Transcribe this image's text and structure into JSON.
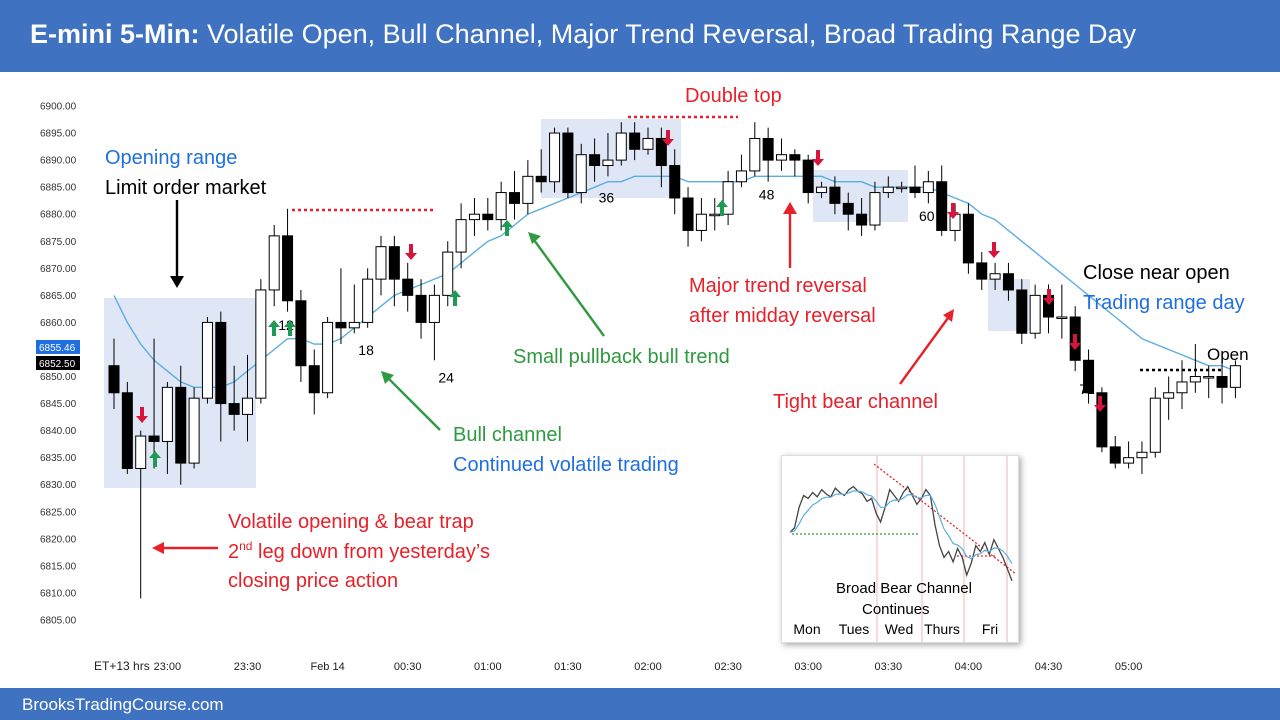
{
  "header": {
    "title_bold": "E-mini 5-Min:",
    "title_rest": " Volatile Open, Bull Channel, Major Trend Reversal, Broad Trading Range Day"
  },
  "footer": {
    "site": "BrooksTradingCourse.com"
  },
  "colors": {
    "bull_body": "#ffffff",
    "bear_body": "#000000",
    "ema": "#5aaee0",
    "shade": "#dfe6f6",
    "red": "#e8202a",
    "green": "#2f9a3f",
    "blue": "#1f6fe0",
    "up_arrow": "#1e9a55",
    "down_arrow": "#d8143a"
  },
  "chart_data": {
    "type": "candlestick",
    "timeframe": "5-Min",
    "x_label": "ET+13 hrs",
    "ylim": [
      6805,
      6900
    ],
    "y_ticks": [
      "6900.00",
      "6895.00",
      "6890.00",
      "6885.00",
      "6880.00",
      "6875.00",
      "6870.00",
      "6865.00",
      "6860.00",
      "6855.00",
      "6850.00",
      "6845.00",
      "6840.00",
      "6835.00",
      "6830.00",
      "6825.00",
      "6820.00",
      "6815.00",
      "6810.00",
      "6805.00"
    ],
    "x_ticks": [
      {
        "bar": 4,
        "label": "23:00"
      },
      {
        "bar": 10,
        "label": "23:30"
      },
      {
        "bar": 16,
        "label": "Feb 14"
      },
      {
        "bar": 22,
        "label": "00:30"
      },
      {
        "bar": 28,
        "label": "01:00"
      },
      {
        "bar": 34,
        "label": "01:30"
      },
      {
        "bar": 40,
        "label": "02:00"
      },
      {
        "bar": 46,
        "label": "02:30"
      },
      {
        "bar": 52,
        "label": "03:00"
      },
      {
        "bar": 58,
        "label": "03:30"
      },
      {
        "bar": 64,
        "label": "04:00"
      },
      {
        "bar": 70,
        "label": "04:30"
      },
      {
        "bar": 76,
        "label": "05:00"
      }
    ],
    "price_tags": [
      {
        "value": 6855.46,
        "label": "6855.46",
        "color": "#1f6fe0"
      },
      {
        "value": 6852.5,
        "label": "6852.50",
        "color": "#000000"
      }
    ],
    "candles": [
      [
        6852,
        6847,
        6857,
        6844
      ],
      [
        6847,
        6833,
        6849,
        6832
      ],
      [
        6833,
        6839,
        6840,
        6809
      ],
      [
        6839,
        6838,
        6857,
        6833
      ],
      [
        6838,
        6848,
        6849,
        6832
      ],
      [
        6848,
        6834,
        6852,
        6830
      ],
      [
        6834,
        6846,
        6848,
        6833
      ],
      [
        6846,
        6860,
        6861,
        6845
      ],
      [
        6860,
        6845,
        6862,
        6838
      ],
      [
        6845,
        6843,
        6852,
        6840
      ],
      [
        6843,
        6846,
        6854,
        6838
      ],
      [
        6846,
        6866,
        6868,
        6845
      ],
      [
        6866,
        6876,
        6878,
        6863
      ],
      [
        6876,
        6864,
        6881,
        6862
      ],
      [
        6864,
        6852,
        6866,
        6849
      ],
      [
        6852,
        6847,
        6855,
        6843
      ],
      [
        6847,
        6860,
        6861,
        6846
      ],
      [
        6860,
        6859,
        6870,
        6856
      ],
      [
        6859,
        6860,
        6867,
        6858
      ],
      [
        6860,
        6868,
        6870,
        6859
      ],
      [
        6868,
        6874,
        6876,
        6865
      ],
      [
        6874,
        6868,
        6876,
        6863
      ],
      [
        6868,
        6865,
        6871,
        6862
      ],
      [
        6865,
        6860,
        6868,
        6857
      ],
      [
        6860,
        6865,
        6867,
        6853
      ],
      [
        6865,
        6873,
        6875,
        6863
      ],
      [
        6873,
        6879,
        6882,
        6870
      ],
      [
        6879,
        6880,
        6883,
        6876
      ],
      [
        6880,
        6879,
        6883,
        6877
      ],
      [
        6879,
        6884,
        6886,
        6877
      ],
      [
        6884,
        6882,
        6888,
        6879
      ],
      [
        6882,
        6887,
        6890,
        6880
      ],
      [
        6887,
        6886,
        6892,
        6884
      ],
      [
        6886,
        6895,
        6896,
        6884
      ],
      [
        6895,
        6884,
        6896,
        6883
      ],
      [
        6884,
        6891,
        6893,
        6882
      ],
      [
        6891,
        6889,
        6894,
        6886
      ],
      [
        6889,
        6890,
        6895,
        6887
      ],
      [
        6890,
        6895,
        6897,
        6889
      ],
      [
        6895,
        6892,
        6897,
        6890
      ],
      [
        6892,
        6894,
        6896,
        6891
      ],
      [
        6894,
        6889,
        6896,
        6885
      ],
      [
        6889,
        6883,
        6892,
        6880
      ],
      [
        6883,
        6877,
        6885,
        6874
      ],
      [
        6877,
        6880,
        6883,
        6875
      ],
      [
        6880,
        6880,
        6883,
        6877
      ],
      [
        6880,
        6886,
        6888,
        6878
      ],
      [
        6886,
        6888,
        6891,
        6885
      ],
      [
        6888,
        6894,
        6897,
        6887
      ],
      [
        6894,
        6890,
        6896,
        6886
      ],
      [
        6890,
        6891,
        6894,
        6888
      ],
      [
        6891,
        6890,
        6892,
        6887
      ],
      [
        6890,
        6884,
        6891,
        6882
      ],
      [
        6884,
        6885,
        6886,
        6883
      ],
      [
        6885,
        6882,
        6887,
        6880
      ],
      [
        6882,
        6880,
        6884,
        6877
      ],
      [
        6880,
        6878,
        6883,
        6876
      ],
      [
        6878,
        6884,
        6886,
        6877
      ],
      [
        6884,
        6885,
        6887,
        6883
      ],
      [
        6885,
        6885,
        6886,
        6884
      ],
      [
        6885,
        6884,
        6889,
        6883
      ],
      [
        6884,
        6886,
        6888,
        6882
      ],
      [
        6886,
        6877,
        6889,
        6876
      ],
      [
        6877,
        6880,
        6882,
        6875
      ],
      [
        6880,
        6871,
        6882,
        6869
      ],
      [
        6871,
        6868,
        6873,
        6866
      ],
      [
        6868,
        6869,
        6871,
        6866
      ],
      [
        6869,
        6866,
        6871,
        6864
      ],
      [
        6866,
        6858,
        6868,
        6856
      ],
      [
        6858,
        6865,
        6867,
        6857
      ],
      [
        6865,
        6861,
        6867,
        6858
      ],
      [
        6861,
        6861,
        6867,
        6857
      ],
      [
        6861,
        6853,
        6863,
        6851
      ],
      [
        6853,
        6847,
        6855,
        6845
      ],
      [
        6847,
        6837,
        6848,
        6836
      ],
      [
        6837,
        6834,
        6839,
        6833
      ],
      [
        6834,
        6835,
        6838,
        6833
      ],
      [
        6835,
        6836,
        6838,
        6832
      ],
      [
        6836,
        6846,
        6848,
        6835
      ],
      [
        6846,
        6847,
        6850,
        6842
      ],
      [
        6847,
        6849,
        6853,
        6844
      ],
      [
        6849,
        6850,
        6856,
        6847
      ],
      [
        6850,
        6850,
        6852,
        6846
      ],
      [
        6850,
        6848,
        6853,
        6845
      ],
      [
        6848,
        6852,
        6853,
        6846
      ]
    ],
    "ema": [
      6865,
      6860,
      6856,
      6853,
      6851,
      6849,
      6848,
      6848,
      6848,
      6849,
      6851,
      6853,
      6855,
      6857,
      6857,
      6856,
      6856,
      6857,
      6859,
      6861,
      6863,
      6865,
      6866,
      6867,
      6868,
      6869,
      6871,
      6873,
      6875,
      6876,
      6878,
      6880,
      6881,
      6882,
      6883,
      6884,
      6885,
      6886,
      6886,
      6887,
      6887,
      6887,
      6887,
      6886,
      6886,
      6886,
      6886,
      6886,
      6887,
      6887,
      6887,
      6887,
      6887,
      6887,
      6886,
      6886,
      6886,
      6885,
      6885,
      6885,
      6885,
      6885,
      6884,
      6883,
      6882,
      6880,
      6879,
      6877,
      6875,
      6873,
      6871,
      6869,
      6867,
      6865,
      6863,
      6861,
      6859,
      6857,
      6856,
      6855,
      6854,
      6853,
      6852,
      6852,
      6851
    ],
    "bar_numbers": [
      {
        "bar": 12,
        "label": "12"
      },
      {
        "bar": 18,
        "label": "18"
      },
      {
        "bar": 24,
        "label": "24"
      },
      {
        "bar": 36,
        "label": "36"
      },
      {
        "bar": 48,
        "label": "48"
      },
      {
        "bar": 60,
        "label": "60"
      },
      {
        "bar": 72,
        "label": "72"
      }
    ],
    "annotations": {
      "opening_range": "Opening range",
      "limit_order": "Limit order market",
      "double_top": "Double top",
      "small_pullback": "Small pullback bull trend",
      "bull_channel": "Bull channel",
      "continued": "Continued volatile trading",
      "volatile_1": "Volatile opening & bear trap",
      "volatile_2_pre": "2",
      "volatile_2_sup": "nd",
      "volatile_2_post": " leg down from yesterday’s",
      "volatile_3": "closing price action",
      "mtr_1": "Major trend reversal",
      "mtr_2": "after midday reversal",
      "tight_bear": "Tight bear channel",
      "close_near_open": "Close near open",
      "trading_range_day": "Trading range day",
      "open": "Open"
    },
    "inset": {
      "caption_1": "Broad Bear Channel",
      "caption_2": "Continues",
      "days": [
        "Mon",
        "Tues",
        "Wed",
        "Thurs",
        "Fri"
      ],
      "series": [
        6855,
        6858,
        6872,
        6880,
        6878,
        6882,
        6879,
        6884,
        6881,
        6879,
        6885,
        6882,
        6880,
        6884,
        6886,
        6883,
        6881,
        6876,
        6878,
        6868,
        6862,
        6872,
        6884,
        6880,
        6876,
        6882,
        6886,
        6880,
        6874,
        6878,
        6884,
        6880,
        6860,
        6846,
        6838,
        6842,
        6835,
        6844,
        6838,
        6826,
        6834,
        6846,
        6842,
        6848,
        6840,
        6850,
        6844,
        6838,
        6830,
        6822
      ]
    }
  }
}
